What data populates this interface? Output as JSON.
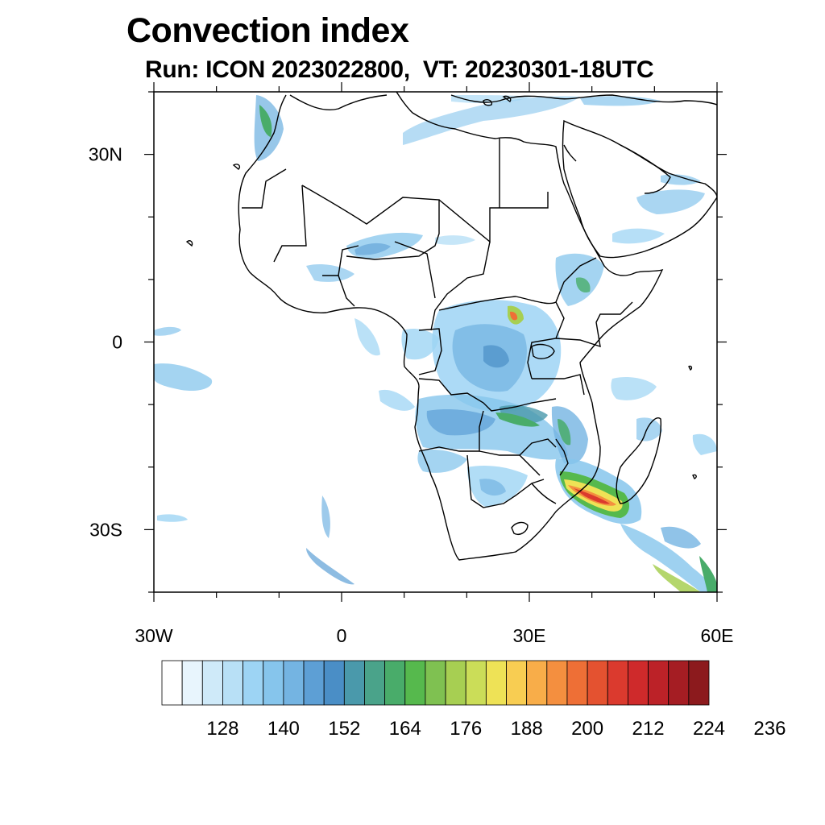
{
  "title": "Convection index",
  "subtitle": "Run: ICON 2023022800,  VT: 20230301-18UTC",
  "map": {
    "extent": {
      "lon": [
        -30,
        60
      ],
      "lat": [
        -40,
        40
      ]
    },
    "lat_ticks": [
      {
        "value": 30,
        "label": "30N"
      },
      {
        "value": 0,
        "label": "0"
      },
      {
        "value": -30,
        "label": "30S"
      }
    ],
    "lon_ticks": [
      {
        "value": -30,
        "label": "30W"
      },
      {
        "value": 0,
        "label": "0"
      },
      {
        "value": 30,
        "label": "30E"
      },
      {
        "value": 60,
        "label": "60E"
      }
    ]
  },
  "colorbar": {
    "colors": [
      "#ffffff",
      "#e8f5fd",
      "#cfeaf9",
      "#b8e0f6",
      "#9dd4f4",
      "#86c5ec",
      "#74b4e2",
      "#5d9fd5",
      "#4a8ec6",
      "#4a99ab",
      "#4aa38a",
      "#49ac6a",
      "#56b94d",
      "#7fc151",
      "#a7cf52",
      "#cbdd58",
      "#eee256",
      "#f8cd52",
      "#f8ad49",
      "#f48f3f",
      "#ee6f36",
      "#e45230",
      "#db3a2e",
      "#cf2a2b",
      "#bc2228",
      "#a51d23",
      "#8c1a1d"
    ],
    "labels": [
      "128",
      "140",
      "152",
      "164",
      "176",
      "188",
      "200",
      "212",
      "224",
      "236"
    ]
  }
}
